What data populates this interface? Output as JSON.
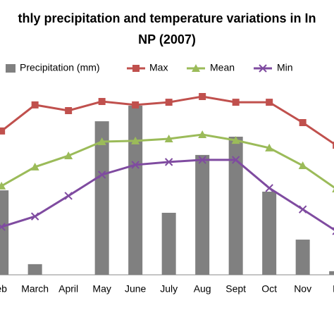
{
  "chart_data": {
    "type": "bar",
    "title_lines": [
      "thly precipitation and temperature variations in In",
      "NP (2007)"
    ],
    "categories": [
      "eb",
      "March",
      "April",
      "May",
      "June",
      "July",
      "Aug",
      "Sept",
      "Oct",
      "Nov",
      "D"
    ],
    "ylim": [
      0,
      100
    ],
    "series": [
      {
        "name": "Precipitation (mm)",
        "type": "bar",
        "color": "#808080",
        "values": [
          44.4,
          5.6,
          0,
          80.7,
          88.9,
          32.6,
          63,
          72.6,
          43.7,
          18.5,
          1.9
        ]
      },
      {
        "name": "Max",
        "type": "line",
        "marker": "square",
        "color": "#c0504d",
        "values": [
          75.6,
          89.3,
          86.3,
          91.1,
          89.3,
          90.7,
          93.7,
          90.7,
          90.7,
          80,
          68.1
        ]
      },
      {
        "name": "Mean",
        "type": "line",
        "marker": "triangle",
        "color": "#9bbb59",
        "values": [
          46.7,
          56.7,
          62.6,
          70,
          70.4,
          71.5,
          73.7,
          70.7,
          66.7,
          57.4,
          45.2
        ]
      },
      {
        "name": "Min",
        "type": "line",
        "marker": "x",
        "color": "#7f4ba0",
        "values": [
          25.2,
          30.7,
          41.5,
          52.6,
          57.8,
          59.3,
          60.4,
          60.4,
          45.6,
          34.4,
          23
        ]
      }
    ]
  }
}
